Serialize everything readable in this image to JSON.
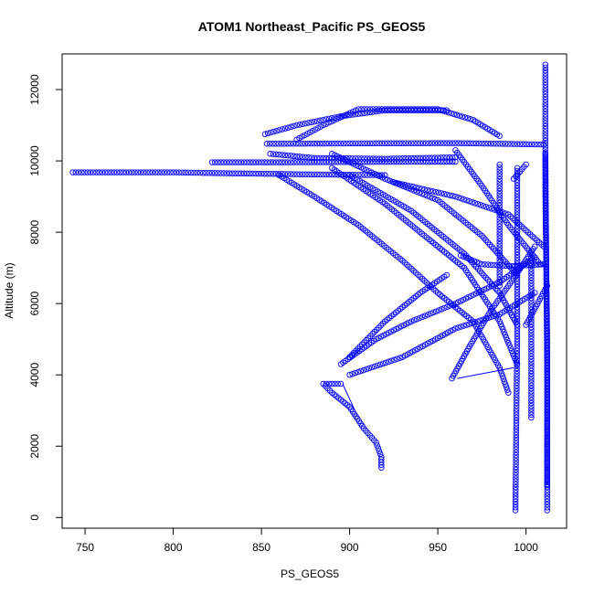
{
  "chart_data": {
    "type": "scatter",
    "title": "ATOM1 Northeast_Pacific PS_GEOS5",
    "xlabel": "PS_GEOS5",
    "ylabel": "Altitude (m)",
    "xlim": [
      737,
      1023
    ],
    "ylim": [
      -300,
      13000
    ],
    "xticks": [
      750,
      800,
      850,
      900,
      950,
      1000
    ],
    "yticks": [
      0,
      2000,
      4000,
      6000,
      8000,
      10000,
      12000
    ],
    "marker": "open-circle",
    "color": "#0000ff",
    "grid": false,
    "series": [
      {
        "segments": [
          [
            [
              743,
              9680
            ],
            [
              800,
              9680
            ],
            [
              822,
              9660
            ],
            [
              850,
              9640
            ],
            [
              880,
              9620
            ],
            [
              920,
              9600
            ]
          ],
          [
            [
              822,
              9960
            ],
            [
              860,
              9960
            ],
            [
              900,
              9970
            ],
            [
              960,
              9980
            ]
          ],
          [
            [
              853,
              10480
            ],
            [
              900,
              10490
            ],
            [
              960,
              10500
            ],
            [
              1010,
              10460
            ]
          ],
          [
            [
              855,
              10200
            ],
            [
              880,
              10080
            ],
            [
              920,
              10060
            ],
            [
              960,
              10100
            ]
          ],
          [
            [
              852,
              10750
            ],
            [
              870,
              11000
            ],
            [
              895,
              11250
            ],
            [
              920,
              11420
            ],
            [
              955,
              11420
            ]
          ],
          [
            [
              870,
              10600
            ],
            [
              885,
              11000
            ],
            [
              905,
              11450
            ],
            [
              950,
              11450
            ],
            [
              970,
              11150
            ],
            [
              985,
              10700
            ]
          ],
          [
            [
              860,
              9600
            ],
            [
              880,
              9000
            ],
            [
              905,
              8200
            ],
            [
              930,
              7200
            ],
            [
              950,
              6300
            ],
            [
              970,
              5500
            ],
            [
              985,
              4200
            ],
            [
              990,
              3500
            ]
          ],
          [
            [
              890,
              9800
            ],
            [
              920,
              8800
            ],
            [
              945,
              7800
            ],
            [
              965,
              7000
            ],
            [
              985,
              5500
            ],
            [
              995,
              4300
            ]
          ],
          [
            [
              900,
              9600
            ],
            [
              935,
              8600
            ],
            [
              965,
              7400
            ],
            [
              985,
              6300
            ],
            [
              995,
              5400
            ]
          ],
          [
            [
              925,
              9400
            ],
            [
              960,
              9000
            ],
            [
              990,
              8500
            ],
            [
              1010,
              7600
            ]
          ],
          [
            [
              960,
              10300
            ],
            [
              975,
              9300
            ],
            [
              990,
              8200
            ],
            [
              1008,
              7100
            ]
          ],
          [
            [
              890,
              10200
            ],
            [
              920,
              9500
            ],
            [
              950,
              8900
            ],
            [
              975,
              7900
            ],
            [
              995,
              6800
            ]
          ],
          [
            [
              900,
              4000
            ],
            [
              930,
              4500
            ],
            [
              960,
              5300
            ],
            [
              985,
              5700
            ],
            [
              1005,
              6300
            ]
          ],
          [
            [
              895,
              4300
            ],
            [
              915,
              5000
            ],
            [
              935,
              5500
            ],
            [
              960,
              6000
            ],
            [
              985,
              6600
            ],
            [
              1005,
              7300
            ]
          ],
          [
            [
              895,
              3750
            ],
            [
              885,
              3750
            ],
            [
              890,
              3500
            ],
            [
              900,
              3100
            ],
            [
              908,
              2500
            ],
            [
              915,
              2100
            ],
            [
              918,
              1700
            ],
            [
              918,
              1400
            ]
          ],
          [
            [
              900,
              4500
            ],
            [
              920,
              5500
            ],
            [
              940,
              6300
            ],
            [
              955,
              6800
            ]
          ],
          [
            [
              958,
              3900
            ],
            [
              968,
              4800
            ],
            [
              980,
              5800
            ],
            [
              993,
              6700
            ],
            [
              1005,
              7600
            ]
          ],
          [
            [
              963,
              7350
            ],
            [
              975,
              7100
            ],
            [
              992,
              7050
            ],
            [
              1010,
              7100
            ]
          ],
          [
            [
              993,
              9500
            ],
            [
              1000,
              9900
            ]
          ],
          [
            [
              1000,
              5400
            ],
            [
              1012,
              6500
            ]
          ]
        ]
      },
      {
        "segments": [
          [
            [
              1011,
              12700
            ],
            [
              1011,
              9000
            ],
            [
              1012,
              5000
            ],
            [
              1012,
              200
            ]
          ],
          [
            [
              995,
              9800
            ],
            [
              995,
              5000
            ],
            [
              994,
              200
            ]
          ],
          [
            [
              1011,
              10200
            ],
            [
              1012,
              4000
            ],
            [
              1012,
              900
            ]
          ],
          [
            [
              1003,
              7300
            ],
            [
              1003,
              2800
            ]
          ],
          [
            [
              985,
              9900
            ],
            [
              985,
              6500
            ]
          ]
        ]
      }
    ],
    "lines": [
      [
        [
          961,
          3900
        ],
        [
          993,
          4200
        ]
      ],
      [
        [
          903,
          3000
        ],
        [
          896,
          3750
        ]
      ]
    ]
  }
}
